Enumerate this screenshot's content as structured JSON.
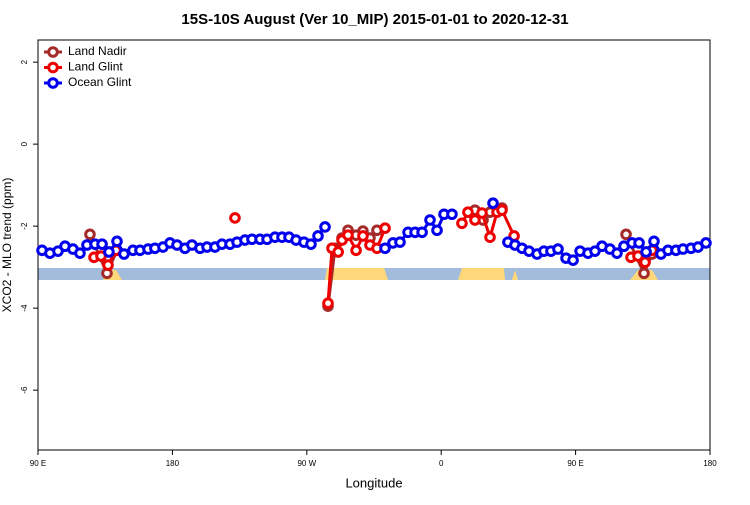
{
  "chart_data": {
    "type": "line",
    "title": "15S-10S August (Ver 10_MIP)   2015-01-01 to 2020-12-31",
    "x_label": "Longitude",
    "y_label": "XCO2 - MLO trend (ppm)",
    "xlim": [
      90,
      540
    ],
    "ylim": [
      -7.46,
      2.54
    ],
    "xticks": [
      {
        "value": 90,
        "label": "90 E"
      },
      180,
      {
        "value": 270,
        "label": "90 W"
      },
      {
        "value": 360,
        "label": "0"
      },
      {
        "value": 450,
        "label": "90 E"
      },
      {
        "value": 540,
        "label": "180"
      }
    ],
    "yticks": [
      -6,
      -4,
      -2,
      0,
      2
    ],
    "legend": "top-left",
    "series": [
      {
        "name": "Land Nadir",
        "color": "#a52a2a",
        "x": [
          124.8,
          136.2,
          142.9,
          null,
          284.2,
          288.9,
          293.6,
          297.6,
          303.0,
          307.6,
          312.3,
          317.0,
          null,
          382.6,
          388.0,
          392.7,
          400.7,
          null,
          483.8,
          495.8,
          501.2
        ],
        "values": [
          -2.2,
          -3.15,
          -2.59,
          null,
          -3.95,
          -2.54,
          -2.29,
          -2.1,
          -2.22,
          -2.12,
          -2.29,
          -2.1,
          null,
          -1.61,
          -1.85,
          -1.66,
          -1.56,
          null,
          -2.2,
          -3.15,
          -2.68
        ]
      },
      {
        "name": "Land Glint",
        "color": "#ee0000",
        "x": [
          127.5,
          132.2,
          136.9,
          142.2,
          null,
          221.9,
          null,
          284.2,
          286.9,
          291.0,
          293.6,
          297.6,
          303.0,
          307.6,
          312.3,
          317.0,
          322.4,
          null,
          373.9,
          377.9,
          382.6,
          387.3,
          392.7,
          397.4,
          400.7,
          408.8,
          null,
          487.1,
          491.8,
          496.5,
          501.2
        ],
        "values": [
          -2.76,
          -2.73,
          -2.95,
          -2.59,
          null,
          -1.8,
          null,
          -3.88,
          -2.54,
          -2.63,
          -2.34,
          -2.22,
          -2.59,
          -2.24,
          -2.46,
          -2.54,
          -2.05,
          null,
          -1.93,
          -1.66,
          -1.85,
          -1.68,
          -2.27,
          -1.66,
          -1.61,
          -2.24,
          null,
          -2.76,
          -2.73,
          -2.88,
          -2.59
        ]
      },
      {
        "name": "Ocean Glint",
        "color": "#0000ee",
        "x": [
          92.7,
          98.0,
          103.4,
          108.1,
          113.4,
          118.1,
          122.8,
          128.2,
          132.9,
          137.5,
          142.9,
          147.6,
          153.6,
          158.3,
          163.7,
          168.3,
          173.7,
          178.4,
          183.1,
          188.4,
          193.1,
          198.5,
          203.2,
          208.5,
          213.2,
          218.6,
          223.3,
          228.6,
          233.3,
          238.7,
          243.4,
          248.7,
          253.4,
          258.1,
          262.8,
          268.1,
          272.8,
          277.5,
          282.2,
          null,
          322.4,
          327.7,
          332.4,
          337.8,
          342.5,
          347.2,
          352.5,
          357.2,
          361.9,
          367.2,
          null,
          394.7,
          null,
          404.7,
          409.4,
          414.1,
          418.8,
          424.2,
          428.8,
          433.5,
          438.2,
          443.6,
          448.3,
          453.0,
          458.3,
          463.0,
          467.7,
          473.0,
          477.7,
          482.4,
          487.8,
          492.5,
          497.2,
          502.5,
          507.2,
          511.9,
          517.2,
          521.9,
          527.3,
          532.0,
          537.3
        ],
        "values": [
          -2.59,
          -2.66,
          -2.61,
          -2.49,
          -2.56,
          -2.66,
          -2.46,
          -2.44,
          -2.44,
          -2.63,
          -2.37,
          -2.68,
          -2.59,
          -2.59,
          -2.56,
          -2.54,
          -2.51,
          -2.41,
          -2.46,
          -2.54,
          -2.46,
          -2.54,
          -2.51,
          -2.51,
          -2.44,
          -2.44,
          -2.39,
          -2.34,
          -2.32,
          -2.32,
          -2.32,
          -2.27,
          -2.27,
          -2.27,
          -2.34,
          -2.39,
          -2.44,
          -2.24,
          -2.02,
          null,
          -2.54,
          -2.41,
          -2.39,
          -2.15,
          -2.15,
          -2.15,
          -1.85,
          -2.1,
          -1.71,
          -1.71,
          null,
          -1.44,
          null,
          -2.39,
          -2.46,
          -2.54,
          -2.61,
          -2.68,
          -2.61,
          -2.61,
          -2.56,
          -2.78,
          -2.83,
          -2.61,
          -2.66,
          -2.61,
          -2.49,
          -2.56,
          -2.66,
          -2.49,
          -2.41,
          -2.41,
          -2.63,
          -2.37,
          -2.68,
          -2.59,
          -2.59,
          -2.56,
          -2.54,
          -2.51,
          -2.41
        ]
      }
    ]
  }
}
